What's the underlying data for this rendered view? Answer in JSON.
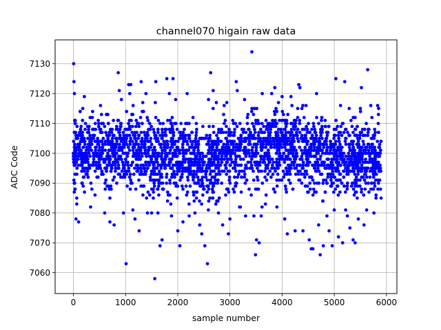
{
  "chart_data": {
    "type": "scatter",
    "title": "channel070 higain raw data",
    "xlabel": "sample number",
    "ylabel": "ADC Code",
    "xlim": [
      -350,
      6200
    ],
    "ylim": [
      7053,
      7138
    ],
    "xticks": [
      0,
      1000,
      2000,
      3000,
      4000,
      5000,
      6000
    ],
    "xtick_labels": [
      "0",
      "1000",
      "2000",
      "3000",
      "4000",
      "5000",
      "6000"
    ],
    "yticks": [
      7060,
      7070,
      7080,
      7090,
      7100,
      7110,
      7120,
      7130
    ],
    "ytick_labels": [
      "7060",
      "7070",
      "7080",
      "7090",
      "7100",
      "7110",
      "7120",
      "7130"
    ],
    "grid": true,
    "marker_color": "#0000ff",
    "series": [
      {
        "n_samples": 5900,
        "typical_range": [
          7086,
          7112
        ],
        "median": 7100,
        "points": [
          [
            5,
            7130
          ],
          [
            10,
            7124
          ],
          [
            20,
            7120
          ],
          [
            50,
            7078
          ],
          [
            100,
            7077
          ],
          [
            180,
            7115
          ],
          [
            210,
            7119
          ],
          [
            330,
            7082
          ],
          [
            420,
            7110
          ],
          [
            520,
            7116
          ],
          [
            600,
            7080
          ],
          [
            700,
            7077
          ],
          [
            780,
            7076
          ],
          [
            860,
            7127
          ],
          [
            880,
            7121
          ],
          [
            920,
            7118
          ],
          [
            960,
            7080
          ],
          [
            1010,
            7063
          ],
          [
            1060,
            7123
          ],
          [
            1080,
            7120
          ],
          [
            1100,
            7123
          ],
          [
            1140,
            7081
          ],
          [
            1180,
            7078
          ],
          [
            1260,
            7074
          ],
          [
            1300,
            7124
          ],
          [
            1330,
            7117
          ],
          [
            1390,
            7120
          ],
          [
            1420,
            7080
          ],
          [
            1500,
            7080
          ],
          [
            1560,
            7058
          ],
          [
            1580,
            7124
          ],
          [
            1620,
            7080
          ],
          [
            1660,
            7069
          ],
          [
            1700,
            7071
          ],
          [
            1790,
            7125
          ],
          [
            1840,
            7120
          ],
          [
            1880,
            7079
          ],
          [
            1910,
            7125
          ],
          [
            1960,
            7118
          ],
          [
            2000,
            7074
          ],
          [
            2040,
            7069
          ],
          [
            2100,
            7077
          ],
          [
            2180,
            7120
          ],
          [
            2220,
            7079
          ],
          [
            2330,
            7080
          ],
          [
            2420,
            7076
          ],
          [
            2460,
            7073
          ],
          [
            2520,
            7069
          ],
          [
            2570,
            7063
          ],
          [
            2590,
            7118
          ],
          [
            2630,
            7127
          ],
          [
            2680,
            7121
          ],
          [
            2740,
            7117
          ],
          [
            2780,
            7080
          ],
          [
            2860,
            7076
          ],
          [
            2890,
            7116
          ],
          [
            2970,
            7073
          ],
          [
            3000,
            7078
          ],
          [
            3120,
            7124
          ],
          [
            3140,
            7121
          ],
          [
            3200,
            7082
          ],
          [
            3280,
            7118
          ],
          [
            3300,
            7079
          ],
          [
            3420,
            7134
          ],
          [
            3460,
            7079
          ],
          [
            3490,
            7066
          ],
          [
            3510,
            7071
          ],
          [
            3560,
            7070
          ],
          [
            3600,
            7079
          ],
          [
            3620,
            7120
          ],
          [
            3680,
            7083
          ],
          [
            3800,
            7120
          ],
          [
            3860,
            7122
          ],
          [
            3900,
            7082
          ],
          [
            3930,
            7117
          ],
          [
            4000,
            7119
          ],
          [
            4050,
            7078
          ],
          [
            4100,
            7073
          ],
          [
            4170,
            7119
          ],
          [
            4250,
            7074
          ],
          [
            4320,
            7123
          ],
          [
            4340,
            7122
          ],
          [
            4400,
            7074
          ],
          [
            4460,
            7116
          ],
          [
            4520,
            7071
          ],
          [
            4560,
            7068
          ],
          [
            4590,
            7068
          ],
          [
            4660,
            7120
          ],
          [
            4700,
            7076
          ],
          [
            4730,
            7066
          ],
          [
            4790,
            7069
          ],
          [
            4860,
            7079
          ],
          [
            4900,
            7074
          ],
          [
            4960,
            7069
          ],
          [
            5000,
            7081
          ],
          [
            5030,
            7125
          ],
          [
            5080,
            7072
          ],
          [
            5120,
            7116
          ],
          [
            5160,
            7070
          ],
          [
            5200,
            7124
          ],
          [
            5250,
            7079
          ],
          [
            5300,
            7075
          ],
          [
            5360,
            7071
          ],
          [
            5400,
            7070
          ],
          [
            5460,
            7078
          ],
          [
            5500,
            7115
          ],
          [
            5520,
            7122
          ],
          [
            5570,
            7076
          ],
          [
            5620,
            7081
          ],
          [
            5640,
            7128
          ],
          [
            5700,
            7116
          ],
          [
            5760,
            7080
          ],
          [
            5800,
            7085
          ],
          [
            5830,
            7116
          ],
          [
            5850,
            7115
          ]
        ]
      }
    ]
  }
}
